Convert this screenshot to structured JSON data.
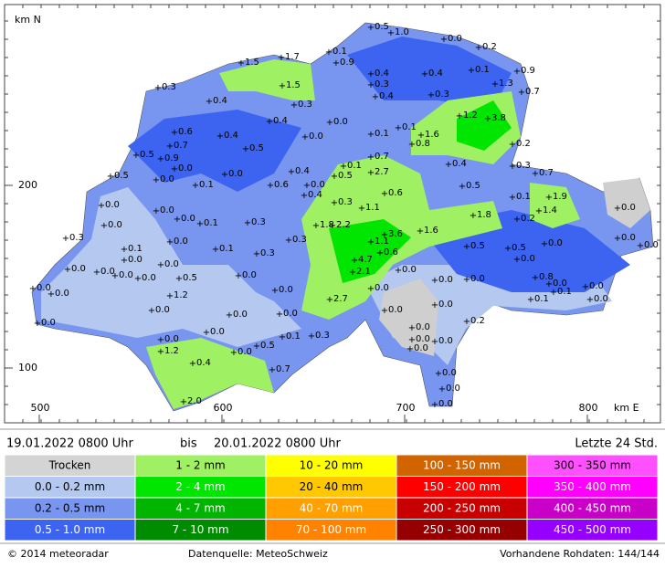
{
  "axis": {
    "north_label": "km N",
    "east_label": "km E",
    "north_ticks": [
      {
        "value": 200,
        "label": "200"
      },
      {
        "value": 100,
        "label": "100"
      }
    ],
    "east_ticks": [
      {
        "value": 500,
        "label": "500"
      },
      {
        "value": 600,
        "label": "600"
      },
      {
        "value": 700,
        "label": "700"
      },
      {
        "value": 800,
        "label": "800"
      }
    ]
  },
  "stations": [
    "0.5",
    "1.0",
    "0.0",
    "0.2",
    "0.1",
    "0.9",
    "1.7",
    "1.5",
    "0.9",
    "0.1",
    "0.4",
    "0.4",
    "0.3",
    "1.3",
    "0.7",
    "1.5",
    "0.3",
    "0.4",
    "0.3",
    "0.4",
    "0.3",
    "1.2",
    "3.8",
    "0.4",
    "0.0",
    "0.6",
    "0.4",
    "0.1",
    "0.1",
    "1.6",
    "0.8",
    "0.7",
    "0.5",
    "0.0",
    "0.2",
    "0.5",
    "0.9",
    "0.0",
    "0.0",
    "0.5",
    "0.7",
    "0.1",
    "0.4",
    "0.3",
    "0.7",
    "0.0",
    "2.7",
    "0.5",
    "0.4",
    "0.1",
    "0.6",
    "0.0",
    "0.4",
    "0.5",
    "0.6",
    "0.1",
    "1.9",
    "0.0",
    "0.3",
    "1.1",
    "1.4",
    "0.0",
    "0.0",
    "1.8",
    "0.0",
    "0.1",
    "0.3",
    "0.2",
    "1.8",
    "2.2",
    "0.0",
    "1.6",
    "3.6",
    "0.3",
    "1.1",
    "0.3",
    "0.0",
    "0.0",
    "0.0",
    "0.0",
    "0.1",
    "0.1",
    "0.5",
    "0.5",
    "0.6",
    "0.3",
    "0.0",
    "4.7",
    "0.0",
    "0.0",
    "0.0",
    "0.0",
    "2.1",
    "0.0",
    "0.0",
    "0.0",
    "0.5",
    "0.0",
    "0.0",
    "0.0",
    "0.8",
    "0.0",
    "0.0",
    "0.0",
    "0.1",
    "0.0",
    "1.2",
    "0.0",
    "0.0",
    "2.7",
    "0.1",
    "0.0",
    "0.0",
    "0.0",
    "0.0",
    "0.0",
    "0.0",
    "0.2",
    "0.0",
    "0.0",
    "0.0",
    "0.1",
    "0.3",
    "0.0",
    "0.0",
    "0.0",
    "0.5",
    "1.2",
    "0.0",
    "0.0",
    "0.4",
    "0.7",
    "0.0",
    "0.0",
    "2.0",
    "0.0"
  ],
  "period": {
    "from": "19.01.2022 0800 Uhr",
    "to_word": "bis",
    "to": "20.01.2022 0800 Uhr",
    "window": "Letzte 24 Std."
  },
  "legend": [
    {
      "label": "Trocken",
      "color": "#d4d4d4"
    },
    {
      "label": "0.0 - 0.2 mm",
      "color": "#b4c8f0"
    },
    {
      "label": "0.2 - 0.5 mm",
      "color": "#7896f0"
    },
    {
      "label": "0.5 - 1.0 mm",
      "color": "#3c64f0"
    },
    {
      "label": "1 - 2 mm",
      "color": "#a0f064"
    },
    {
      "label": "2 - 4 mm",
      "color": "#00e600"
    },
    {
      "label": "4 - 7 mm",
      "color": "#00b400"
    },
    {
      "label": "7 - 10 mm",
      "color": "#008c00"
    },
    {
      "label": "10 - 20 mm",
      "color": "#ffff00"
    },
    {
      "label": "20 - 40 mm",
      "color": "#ffc800"
    },
    {
      "label": "40 - 70 mm",
      "color": "#ffa000"
    },
    {
      "label": "70 - 100 mm",
      "color": "#ff8200"
    },
    {
      "label": "100 - 150 mm",
      "color": "#d26400"
    },
    {
      "label": "150 - 200 mm",
      "color": "#ff0000"
    },
    {
      "label": "200 - 250 mm",
      "color": "#c80000"
    },
    {
      "label": "250 - 300 mm",
      "color": "#960000"
    },
    {
      "label": "300 - 350 mm",
      "color": "#ff50ff"
    },
    {
      "label": "350 - 400 mm",
      "color": "#ff00ff"
    },
    {
      "label": "400 - 450 mm",
      "color": "#c800c8"
    },
    {
      "label": "450 - 500 mm",
      "color": "#9600ff"
    }
  ],
  "footer": {
    "copyright": "© 2014 meteoradar",
    "source": "Datenquelle: MeteoSchweiz",
    "raw": "Vorhandene Rohdaten: 144/144"
  }
}
